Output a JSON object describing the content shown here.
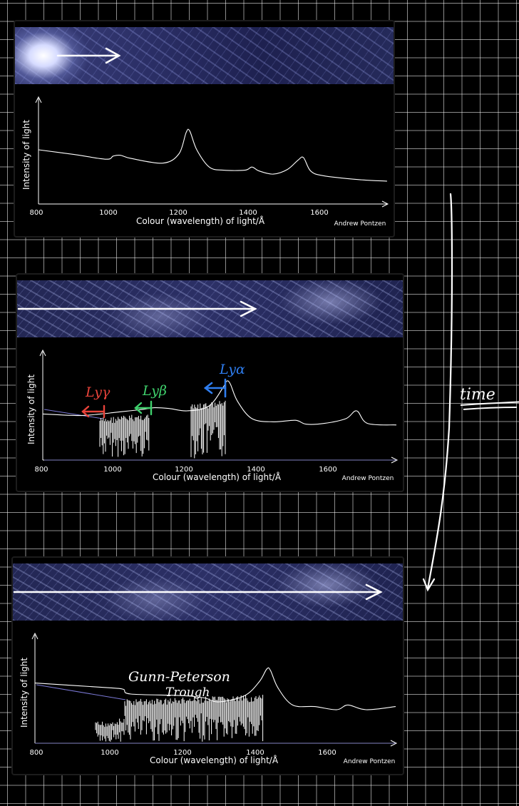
{
  "panels": [
    {
      "y_label": "Intensity of light",
      "x_label": "Colour (wavelength) of light/Å",
      "credit": "Andrew Pontzen",
      "ticks": [
        "800",
        "1000",
        "1200",
        "1400",
        "1600"
      ]
    },
    {
      "y_label": "Intensity of light",
      "x_label": "Colour (wavelength) of light/Å",
      "credit": "Andrew Pontzen",
      "ticks": [
        "800",
        "1000",
        "1200",
        "1400",
        "1600"
      ],
      "annotations": {
        "lyg": "Lyγ",
        "lyb": "Lyβ",
        "lya": "Lyα"
      }
    },
    {
      "y_label": "Intensity of light",
      "x_label": "Colour (wavelength) of light/Å",
      "credit": "Andrew Pontzen",
      "ticks": [
        "800",
        "1000",
        "1200",
        "1400",
        "1600"
      ],
      "annotation": {
        "line1": "Gunn-Peterson",
        "line2": "Trough"
      }
    }
  ],
  "side_label": "time",
  "colors": {
    "lyg": "#e8433a",
    "lyb": "#3fd06c",
    "lya": "#2f7ef0",
    "ink": "#ffffff"
  },
  "chart_data": [
    {
      "type": "line",
      "xlabel": "Colour (wavelength) of light/Å",
      "ylabel": "Intensity of light",
      "xlim": [
        800,
        1780
      ],
      "series": [
        {
          "x": [
            800,
            900,
            990,
            1010,
            1030,
            1060,
            1150,
            1195,
            1215,
            1225,
            1245,
            1280,
            1320,
            1380,
            1400,
            1420,
            1460,
            1500,
            1530,
            1545,
            1565,
            1600,
            1700,
            1780
          ],
          "y": [
            0.6,
            0.54,
            0.48,
            0.52,
            0.53,
            0.49,
            0.43,
            0.55,
            0.82,
            0.84,
            0.6,
            0.38,
            0.34,
            0.34,
            0.38,
            0.33,
            0.29,
            0.35,
            0.47,
            0.5,
            0.33,
            0.27,
            0.22,
            0.2
          ]
        }
      ]
    },
    {
      "type": "line",
      "xlabel": "Colour (wavelength) of light/Å",
      "ylabel": "Intensity of light",
      "xlim": [
        800,
        1780
      ],
      "series": [
        {
          "x": [
            800,
            900,
            960,
            1000,
            1040,
            1080,
            1110,
            1150,
            1200,
            1260,
            1300,
            1310,
            1320,
            1340,
            1380,
            1440,
            1500,
            1530,
            1580,
            1640,
            1670,
            1700,
            1780
          ],
          "y": [
            0.46,
            0.44,
            0.46,
            0.48,
            0.5,
            0.52,
            0.54,
            0.53,
            0.5,
            0.56,
            0.8,
            0.88,
            0.84,
            0.62,
            0.4,
            0.36,
            0.38,
            0.33,
            0.34,
            0.4,
            0.5,
            0.34,
            0.32
          ]
        }
      ]
    },
    {
      "type": "line",
      "xlabel": "Colour (wavelength) of light/Å",
      "ylabel": "Intensity of light",
      "xlim": [
        800,
        1780
      ],
      "series": [
        {
          "x": [
            800,
            1000,
            1040,
            1060,
            1200,
            1260,
            1300,
            1370,
            1410,
            1430,
            1440,
            1460,
            1500,
            1560,
            1620,
            1650,
            1700,
            1780
          ],
          "y": [
            0.64,
            0.58,
            0.56,
            0.5,
            0.48,
            0.45,
            0.4,
            0.48,
            0.66,
            0.82,
            0.8,
            0.58,
            0.36,
            0.34,
            0.3,
            0.36,
            0.3,
            0.34
          ]
        }
      ]
    }
  ]
}
